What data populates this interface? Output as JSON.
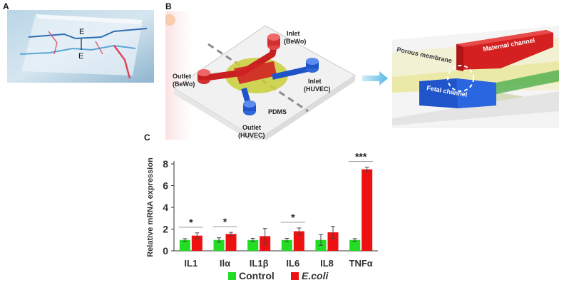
{
  "panel_a": {
    "letter": "A",
    "labels": [
      "E",
      "E"
    ]
  },
  "panel_b": {
    "letter": "B",
    "labels": {
      "inlet_bewo": [
        "Inlet",
        "(BeWo)"
      ],
      "outlet_bewo": [
        "Outlet",
        "(BeWo)"
      ],
      "inlet_huvec": [
        "Inlet",
        "(HUVEC)"
      ],
      "outlet_huvec": [
        "Outlet",
        "(HUVEC)"
      ],
      "pdms": "PDMS",
      "porous_membrane": "Porous membrane",
      "maternal_channel": "Maternal channel",
      "fetal_channel": "Fetal channel"
    },
    "colors": {
      "maternal": "#d42020",
      "fetal": "#1f55c8",
      "membrane": "#e8e7a0",
      "arrow": "#5ab8e6"
    }
  },
  "panel_c": {
    "letter": "C"
  },
  "chart_data": {
    "type": "bar",
    "categories": [
      "IL1",
      "Ilα",
      "IL1β",
      "IL6",
      "IL8",
      "TNFα"
    ],
    "series": [
      {
        "name": "Control",
        "values": [
          1.0,
          1.0,
          1.0,
          1.0,
          1.0,
          1.0
        ],
        "errors": [
          0.12,
          0.2,
          0.15,
          0.15,
          0.5,
          0.12
        ],
        "color": "#22dd22"
      },
      {
        "name": "E.coli",
        "values": [
          1.4,
          1.55,
          1.35,
          1.8,
          1.7,
          7.5
        ],
        "errors": [
          0.25,
          0.15,
          0.7,
          0.3,
          0.55,
          0.2
        ],
        "color": "#ee1111"
      }
    ],
    "significance": [
      "*",
      "*",
      "",
      "*",
      "",
      "***"
    ],
    "ylabel": "Relative mRNA expression",
    "ylim": [
      0,
      8
    ],
    "yticks": [
      0,
      2,
      4,
      6,
      8
    ],
    "legend_position": "bottom"
  }
}
